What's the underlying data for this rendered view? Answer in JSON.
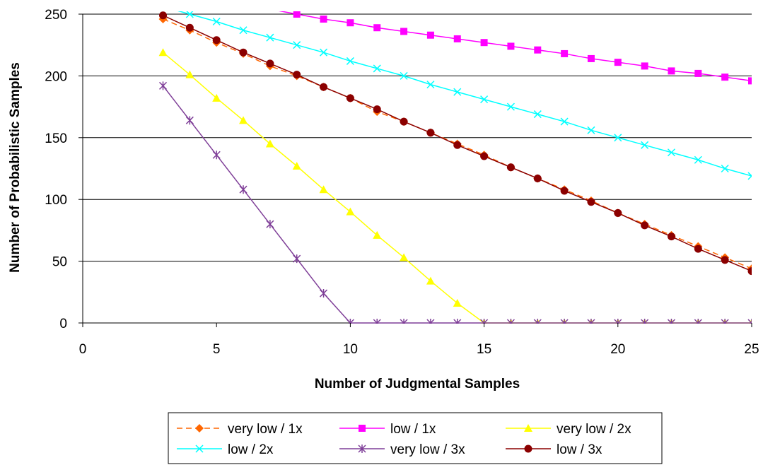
{
  "chart_data": {
    "type": "line",
    "title": "",
    "xlabel": "Number of Judgmental Samples",
    "ylabel": "Number of Probabilistic Samples",
    "xlim": [
      0,
      25
    ],
    "ylim": [
      0,
      250
    ],
    "xticks": [
      0,
      5,
      10,
      15,
      20,
      25
    ],
    "yticks": [
      0,
      50,
      100,
      150,
      200,
      250
    ],
    "grid": "horizontal",
    "legend_position": "bottom",
    "series": [
      {
        "name": "very low / 1x",
        "color": "#FF6600",
        "dash": true,
        "marker": "diamond",
        "x": [
          3,
          4,
          5,
          6,
          7,
          8,
          9,
          10,
          11,
          12,
          13,
          14,
          15,
          16,
          17,
          18,
          19,
          20,
          21,
          22,
          23,
          24,
          25
        ],
        "y": [
          246,
          237,
          227,
          218,
          208,
          200,
          191,
          182,
          171,
          163,
          154,
          145,
          136,
          126,
          117,
          108,
          99,
          89,
          80,
          71,
          62,
          53,
          44
        ]
      },
      {
        "name": "low / 1x",
        "color": "#FF00FF",
        "dash": false,
        "marker": "square",
        "x": [
          8,
          9,
          10,
          11,
          12,
          13,
          14,
          15,
          16,
          17,
          18,
          19,
          20,
          21,
          22,
          23,
          24,
          25
        ],
        "y": [
          250,
          246,
          243,
          239,
          236,
          233,
          230,
          227,
          224,
          221,
          218,
          214,
          211,
          208,
          204,
          202,
          199,
          196
        ]
      },
      {
        "name": "very low / 2x",
        "color": "#FFFF00",
        "dash": false,
        "marker": "triangle",
        "x": [
          3,
          4,
          5,
          6,
          7,
          8,
          9,
          10,
          11,
          12,
          13,
          14,
          15,
          16,
          17,
          18,
          19,
          20,
          21,
          22,
          23,
          24,
          25
        ],
        "y": [
          219,
          201,
          182,
          164,
          145,
          127,
          108,
          90,
          71,
          53,
          34,
          16,
          0,
          0,
          0,
          0,
          0,
          0,
          0,
          0,
          0,
          0,
          0
        ]
      },
      {
        "name": "low / 2x",
        "color": "#00FFFF",
        "dash": false,
        "marker": "x",
        "x": [
          4,
          5,
          6,
          7,
          8,
          9,
          10,
          11,
          12,
          13,
          14,
          15,
          16,
          17,
          18,
          19,
          20,
          21,
          22,
          23,
          24,
          25
        ],
        "y": [
          250,
          244,
          237,
          231,
          225,
          219,
          212,
          206,
          200,
          193,
          187,
          181,
          175,
          169,
          163,
          156,
          150,
          144,
          138,
          132,
          125,
          119
        ]
      },
      {
        "name": "very low / 3x",
        "color": "#7F3F98",
        "dash": false,
        "marker": "star",
        "x": [
          3,
          4,
          5,
          6,
          7,
          8,
          9,
          10,
          11,
          12,
          13,
          14,
          15,
          16,
          17,
          18,
          19,
          20,
          21,
          22,
          23,
          24,
          25
        ],
        "y": [
          192,
          164,
          136,
          108,
          80,
          52,
          24,
          0,
          0,
          0,
          0,
          0,
          0,
          0,
          0,
          0,
          0,
          0,
          0,
          0,
          0,
          0,
          0
        ]
      },
      {
        "name": "low / 3x",
        "color": "#8B0000",
        "dash": false,
        "marker": "circle",
        "x": [
          3,
          4,
          5,
          6,
          7,
          8,
          9,
          10,
          11,
          12,
          13,
          14,
          15,
          16,
          17,
          18,
          19,
          20,
          21,
          22,
          23,
          24,
          25
        ],
        "y": [
          249,
          239,
          229,
          219,
          210,
          201,
          191,
          182,
          173,
          163,
          154,
          144,
          135,
          126,
          117,
          107,
          98,
          89,
          79,
          70,
          60,
          51,
          42
        ]
      }
    ]
  }
}
